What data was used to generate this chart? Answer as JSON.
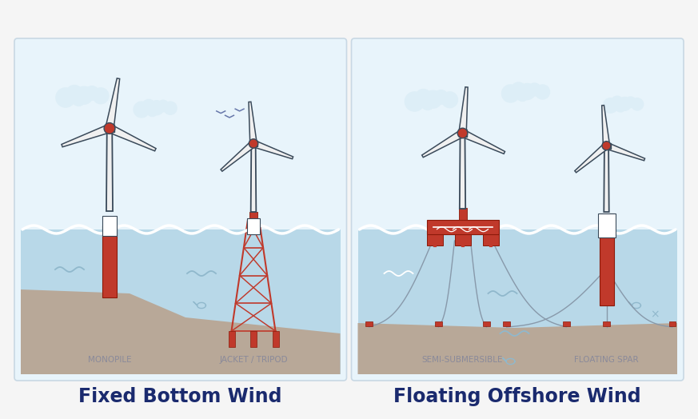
{
  "bg_color": "#f5f5f5",
  "panel_bg": "#ddeef7",
  "sky_color": "#e8f4fb",
  "water_color": "#b8d8e8",
  "water_surface_color": "#a0c8dc",
  "seabed_color": "#b8a898",
  "turbine_blade_color": "#f0f0f0",
  "turbine_outline": "#3a4a5a",
  "structure_color": "#c0392b",
  "structure_outline": "#8B1A0A",
  "title_color": "#1a2a6e",
  "label_color": "#8a8a9a",
  "cloud_color": "#ddeef7",
  "wave_color": "#ffffff",
  "mooring_color": "#8899aa",
  "wave_squiggle_color": "#90b8cc",
  "fish_color": "#90b8cc",
  "left_title": "Fixed Bottom Wind",
  "right_title": "Floating Offshore Wind",
  "left_label1": "MONOPILE",
  "left_label2": "JACKET / TRIPOD",
  "right_label1": "SEMI-SUBMERSIBLE",
  "right_label2": "FLOATING SPAR"
}
